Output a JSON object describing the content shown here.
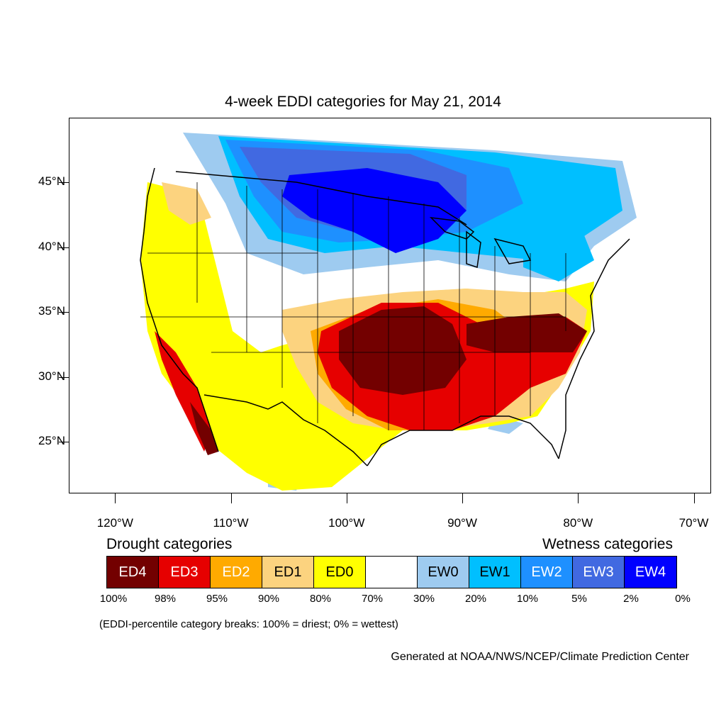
{
  "title": "4-week EDDI categories for May 21, 2014",
  "map": {
    "lat_labels": [
      "45°N",
      "40°N",
      "35°N",
      "30°N",
      "25°N"
    ],
    "lat_values": [
      45,
      40,
      35,
      30,
      25
    ],
    "lon_labels": [
      "120°W",
      "110°W",
      "100°W",
      "90°W",
      "80°W",
      "70°W"
    ],
    "lon_values": [
      -120,
      -110,
      -100,
      -90,
      -80,
      -70
    ],
    "lat_range": [
      21,
      50
    ],
    "lon_range": [
      -124,
      -68.5
    ]
  },
  "legend": {
    "drought_title": "Drought categories",
    "wetness_title": "Wetness categories",
    "categories": [
      {
        "label": "ED4",
        "color": "#730000",
        "text_color": "#ffffff"
      },
      {
        "label": "ED3",
        "color": "#e60000",
        "text_color": "#ffffff"
      },
      {
        "label": "ED2",
        "color": "#ffaa00",
        "text_color": "#ffffff"
      },
      {
        "label": "ED1",
        "color": "#fcd37f",
        "text_color": "#000000"
      },
      {
        "label": "ED0",
        "color": "#ffff00",
        "text_color": "#000000"
      },
      {
        "label": "",
        "color": "#ffffff",
        "text_color": "#000000"
      },
      {
        "label": "EW0",
        "color": "#9ecbf0",
        "text_color": "#000000"
      },
      {
        "label": "EW1",
        "color": "#00bfff",
        "text_color": "#000000"
      },
      {
        "label": "EW2",
        "color": "#1e90ff",
        "text_color": "#ffffff"
      },
      {
        "label": "EW3",
        "color": "#4169e1",
        "text_color": "#ffffff"
      },
      {
        "label": "EW4",
        "color": "#0000ff",
        "text_color": "#ffffff"
      }
    ],
    "percentiles": [
      "100%",
      "98%",
      "95%",
      "90%",
      "80%",
      "70%",
      "30%",
      "20%",
      "10%",
      "5%",
      "2%",
      "0%"
    ]
  },
  "footnote": "(EDDI-percentile category breaks: 100% = driest; 0% = wettest)",
  "credit": "Generated at NOAA/NWS/NCEP/Climate Prediction Center"
}
